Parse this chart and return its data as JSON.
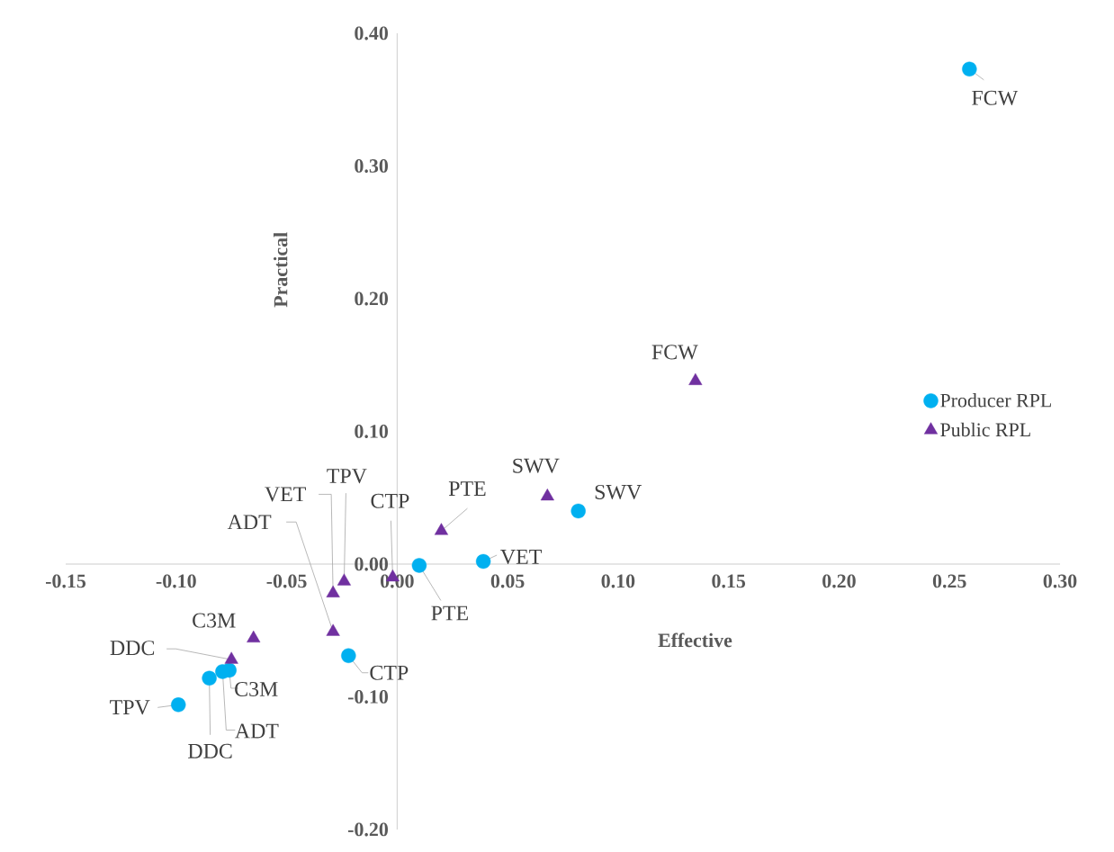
{
  "chart_data": {
    "type": "scatter",
    "xlabel": "Effective",
    "ylabel": "Practical",
    "xlim": [
      -0.15,
      0.3
    ],
    "ylim": [
      -0.2,
      0.4
    ],
    "xticks": [
      {
        "value": -0.15,
        "label": "-0.15"
      },
      {
        "value": -0.1,
        "label": "-0.10"
      },
      {
        "value": -0.05,
        "label": "-0.05"
      },
      {
        "value": 0.0,
        "label": "0.00"
      },
      {
        "value": 0.05,
        "label": "0.05"
      },
      {
        "value": 0.1,
        "label": "0.10"
      },
      {
        "value": 0.15,
        "label": "0.15"
      },
      {
        "value": 0.2,
        "label": "0.20"
      },
      {
        "value": 0.25,
        "label": "0.25"
      },
      {
        "value": 0.3,
        "label": "0.30"
      }
    ],
    "yticks": [
      {
        "value": -0.2,
        "label": "-0.20"
      },
      {
        "value": -0.1,
        "label": "-0.10"
      },
      {
        "value": 0.0,
        "label": "0.00"
      },
      {
        "value": 0.1,
        "label": "0.10"
      },
      {
        "value": 0.2,
        "label": "0.20"
      },
      {
        "value": 0.3,
        "label": "0.30"
      },
      {
        "value": 0.4,
        "label": "0.40"
      }
    ],
    "legend": "right",
    "grid": false,
    "series": [
      {
        "name": "Producer RPL",
        "color": "#00b0f0",
        "marker": "circle",
        "x": [
          0.259,
          0.082,
          0.039,
          0.01,
          -0.022,
          -0.076,
          -0.079,
          -0.085,
          -0.099
        ],
        "values": [
          0.373,
          0.04,
          0.002,
          -0.001,
          -0.069,
          -0.08,
          -0.081,
          -0.086,
          -0.106
        ]
      },
      {
        "name": "Public RPL",
        "color": "#7030a0",
        "marker": "triangle",
        "x": [
          0.135,
          0.068,
          0.02,
          -0.002,
          -0.024,
          -0.029,
          -0.029,
          -0.065,
          -0.075
        ],
        "values": [
          0.138,
          0.051,
          0.025,
          -0.01,
          -0.013,
          -0.022,
          -0.051,
          -0.056,
          -0.072
        ]
      }
    ],
    "annotations": [
      {
        "text": "FCW",
        "x": 0.259,
        "y": 0.373
      },
      {
        "text": "SWV",
        "x": 0.082,
        "y": 0.04
      },
      {
        "text": "VET",
        "x": 0.039,
        "y": 0.002
      },
      {
        "text": "PTE",
        "x": 0.01,
        "y": -0.001
      },
      {
        "text": "CTP",
        "x": -0.022,
        "y": -0.069
      },
      {
        "text": "C3M",
        "x": -0.076,
        "y": -0.08
      },
      {
        "text": "ADT",
        "x": -0.079,
        "y": -0.081
      },
      {
        "text": "DDC",
        "x": -0.085,
        "y": -0.086
      },
      {
        "text": "TPV",
        "x": -0.099,
        "y": -0.106
      },
      {
        "text": "FCW",
        "x": 0.135,
        "y": 0.138
      },
      {
        "text": "SWV",
        "x": 0.068,
        "y": 0.051
      },
      {
        "text": "PTE",
        "x": 0.02,
        "y": 0.025
      },
      {
        "text": "CTP",
        "x": -0.002,
        "y": -0.01
      },
      {
        "text": "TPV",
        "x": -0.024,
        "y": -0.013
      },
      {
        "text": "VET",
        "x": -0.029,
        "y": -0.022
      },
      {
        "text": "ADT",
        "x": -0.029,
        "y": -0.051
      },
      {
        "text": "C3M",
        "x": -0.065,
        "y": -0.056
      },
      {
        "text": "DDC",
        "x": -0.075,
        "y": -0.072
      }
    ]
  }
}
